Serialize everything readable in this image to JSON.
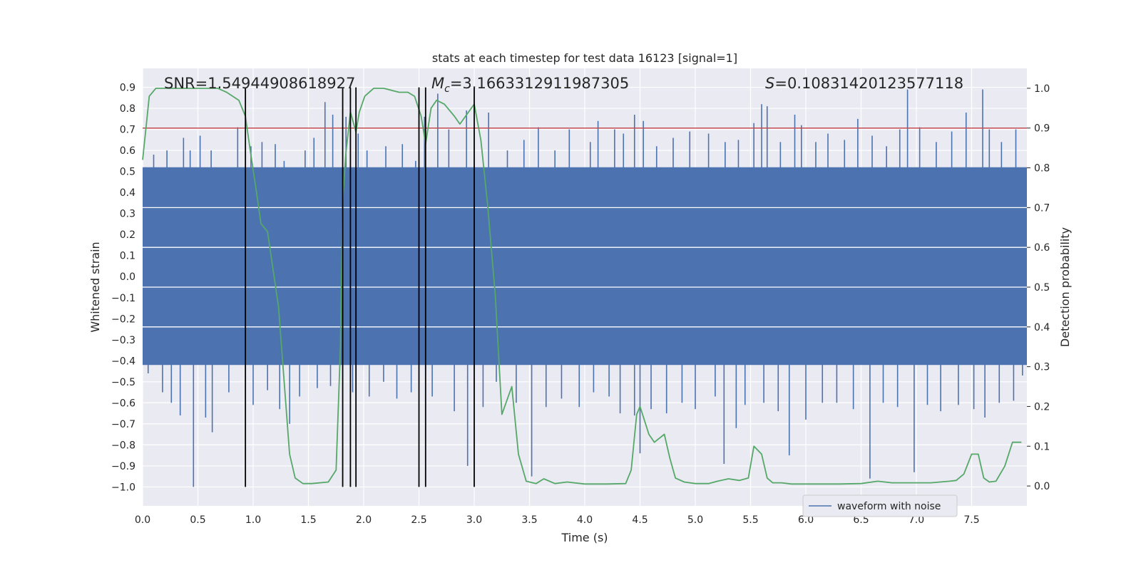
{
  "chart_data": {
    "type": "line",
    "title": "stats at each timestep for test data 16123 [signal=1]",
    "xlabel": "Time (s)",
    "ylabel": "Whitened strain",
    "y2label": "Detection probability",
    "xlim": [
      0.0,
      8.0
    ],
    "ylim": [
      -1.09,
      0.99
    ],
    "y2lim": [
      -0.05,
      1.05
    ],
    "x_ticks": [
      0.0,
      0.5,
      1.0,
      1.5,
      2.0,
      2.5,
      3.0,
      3.5,
      4.0,
      4.5,
      5.0,
      5.5,
      6.0,
      6.5,
      7.0,
      7.5
    ],
    "y_ticks": [
      -1.0,
      -0.9,
      -0.8,
      -0.7,
      -0.6,
      -0.5,
      -0.4,
      -0.3,
      -0.2,
      -0.1,
      0.0,
      0.1,
      0.2,
      0.3,
      0.4,
      0.5,
      0.6,
      0.7,
      0.8,
      0.9
    ],
    "y2_ticks": [
      0.0,
      0.1,
      0.2,
      0.3,
      0.4,
      0.5,
      0.6,
      0.7,
      0.8,
      0.9,
      1.0
    ],
    "annotations": {
      "snr": "SNR=1.54944908618927",
      "mc_symbol": "M",
      "mc_sub": "c",
      "mc_value": "=3.1663312911987305",
      "s_symbol": "S",
      "s_value": "=0.10831420123577118"
    },
    "threshold": {
      "value": 0.9,
      "axis": "y2",
      "color": "#c44e52"
    },
    "vertical_markers": [
      0.93,
      1.81,
      1.88,
      1.93,
      2.5,
      2.56,
      3.0
    ],
    "vertical_marker_range": [
      -1.0,
      0.9
    ],
    "waveform": {
      "name": "waveform with noise",
      "color": "#4c72b0",
      "core_range": [
        -0.42,
        0.52
      ],
      "spikes_up": [
        [
          0.03,
          0.52
        ],
        [
          0.1,
          0.58
        ],
        [
          0.22,
          0.6
        ],
        [
          0.37,
          0.66
        ],
        [
          0.43,
          0.6
        ],
        [
          0.52,
          0.67
        ],
        [
          0.62,
          0.6
        ],
        [
          0.86,
          0.71
        ],
        [
          0.98,
          0.62
        ],
        [
          1.08,
          0.64
        ],
        [
          1.2,
          0.63
        ],
        [
          1.28,
          0.55
        ],
        [
          1.47,
          0.6
        ],
        [
          1.55,
          0.66
        ],
        [
          1.65,
          0.83
        ],
        [
          1.72,
          0.77
        ],
        [
          1.84,
          0.76
        ],
        [
          1.95,
          0.68
        ],
        [
          2.03,
          0.6
        ],
        [
          2.2,
          0.62
        ],
        [
          2.35,
          0.63
        ],
        [
          2.47,
          0.55
        ],
        [
          2.55,
          0.76
        ],
        [
          2.67,
          0.87
        ],
        [
          2.77,
          0.7
        ],
        [
          2.93,
          0.79
        ],
        [
          3.13,
          0.78
        ],
        [
          3.3,
          0.6
        ],
        [
          3.45,
          0.65
        ],
        [
          3.58,
          0.71
        ],
        [
          3.73,
          0.6
        ],
        [
          3.86,
          0.7
        ],
        [
          4.05,
          0.64
        ],
        [
          4.12,
          0.74
        ],
        [
          4.27,
          0.7
        ],
        [
          4.35,
          0.68
        ],
        [
          4.45,
          0.77
        ],
        [
          4.53,
          0.74
        ],
        [
          4.65,
          0.62
        ],
        [
          4.8,
          0.66
        ],
        [
          4.95,
          0.69
        ],
        [
          5.12,
          0.68
        ],
        [
          5.27,
          0.64
        ],
        [
          5.39,
          0.65
        ],
        [
          5.53,
          0.73
        ],
        [
          5.6,
          0.82
        ],
        [
          5.65,
          0.81
        ],
        [
          5.77,
          0.64
        ],
        [
          5.9,
          0.77
        ],
        [
          5.96,
          0.72
        ],
        [
          6.09,
          0.64
        ],
        [
          6.2,
          0.68
        ],
        [
          6.35,
          0.65
        ],
        [
          6.47,
          0.75
        ],
        [
          6.6,
          0.67
        ],
        [
          6.73,
          0.62
        ],
        [
          6.85,
          0.7
        ],
        [
          6.92,
          0.89
        ],
        [
          7.03,
          0.71
        ],
        [
          7.18,
          0.64
        ],
        [
          7.32,
          0.69
        ],
        [
          7.45,
          0.78
        ],
        [
          7.6,
          0.89
        ],
        [
          7.66,
          0.7
        ],
        [
          7.77,
          0.64
        ],
        [
          7.9,
          0.7
        ]
      ],
      "spikes_down": [
        [
          0.05,
          -0.46
        ],
        [
          0.18,
          -0.55
        ],
        [
          0.26,
          -0.6
        ],
        [
          0.34,
          -0.66
        ],
        [
          0.46,
          -1.0
        ],
        [
          0.57,
          -0.67
        ],
        [
          0.63,
          -0.74
        ],
        [
          0.78,
          -0.55
        ],
        [
          1.0,
          -0.61
        ],
        [
          1.13,
          -0.54
        ],
        [
          1.24,
          -0.63
        ],
        [
          1.33,
          -0.7
        ],
        [
          1.42,
          -0.57
        ],
        [
          1.58,
          -0.53
        ],
        [
          1.7,
          -0.52
        ],
        [
          1.9,
          -0.55
        ],
        [
          2.05,
          -0.57
        ],
        [
          2.18,
          -0.5
        ],
        [
          2.3,
          -0.58
        ],
        [
          2.43,
          -0.55
        ],
        [
          2.62,
          -0.57
        ],
        [
          2.82,
          -0.64
        ],
        [
          2.94,
          -0.9
        ],
        [
          3.08,
          -0.62
        ],
        [
          3.2,
          -0.5
        ],
        [
          3.38,
          -0.6
        ],
        [
          3.52,
          -0.95
        ],
        [
          3.65,
          -0.62
        ],
        [
          3.79,
          -0.58
        ],
        [
          3.95,
          -0.62
        ],
        [
          4.08,
          -0.55
        ],
        [
          4.22,
          -0.57
        ],
        [
          4.32,
          -0.65
        ],
        [
          4.45,
          -0.66
        ],
        [
          4.5,
          -0.84
        ],
        [
          4.6,
          -0.63
        ],
        [
          4.74,
          -0.65
        ],
        [
          4.88,
          -0.6
        ],
        [
          5.0,
          -0.63
        ],
        [
          5.18,
          -0.57
        ],
        [
          5.26,
          -0.89
        ],
        [
          5.37,
          -0.72
        ],
        [
          5.45,
          -0.61
        ],
        [
          5.62,
          -0.6
        ],
        [
          5.75,
          -0.64
        ],
        [
          5.85,
          -0.85
        ],
        [
          6.0,
          -0.68
        ],
        [
          6.15,
          -0.6
        ],
        [
          6.28,
          -0.6
        ],
        [
          6.43,
          -0.63
        ],
        [
          6.58,
          -0.96
        ],
        [
          6.7,
          -0.6
        ],
        [
          6.83,
          -0.62
        ],
        [
          6.98,
          -0.93
        ],
        [
          7.1,
          -0.61
        ],
        [
          7.22,
          -0.64
        ],
        [
          7.38,
          -0.61
        ],
        [
          7.52,
          -0.63
        ],
        [
          7.62,
          -0.67
        ],
        [
          7.75,
          -0.6
        ],
        [
          7.88,
          -0.59
        ],
        [
          7.96,
          -0.47
        ]
      ]
    },
    "probability": {
      "name": "detection probability",
      "color": "#55a868",
      "x": [
        0.0,
        0.03,
        0.06,
        0.12,
        0.3,
        0.5,
        0.68,
        0.76,
        0.87,
        0.93,
        0.97,
        1.03,
        1.07,
        1.13,
        1.23,
        1.33,
        1.38,
        1.45,
        1.53,
        1.68,
        1.75,
        1.79,
        1.81,
        1.84,
        1.88,
        1.91,
        1.93,
        1.96,
        2.01,
        2.09,
        2.18,
        2.32,
        2.4,
        2.46,
        2.52,
        2.56,
        2.61,
        2.66,
        2.73,
        2.82,
        2.87,
        3.0,
        3.06,
        3.12,
        3.19,
        3.25,
        3.34,
        3.4,
        3.47,
        3.56,
        3.63,
        3.73,
        3.84,
        4.0,
        4.2,
        4.37,
        4.42,
        4.47,
        4.5,
        4.58,
        4.63,
        4.72,
        4.77,
        4.82,
        4.9,
        5.0,
        5.12,
        5.2,
        5.3,
        5.4,
        5.48,
        5.53,
        5.6,
        5.65,
        5.7,
        5.78,
        5.87,
        5.97,
        6.1,
        6.3,
        6.5,
        6.65,
        6.78,
        6.9,
        7.0,
        7.13,
        7.3,
        7.36,
        7.43,
        7.5,
        7.56,
        7.61,
        7.66,
        7.72,
        7.8,
        7.87,
        7.95
      ],
      "y": [
        0.82,
        0.9,
        0.98,
        1.0,
        1.0,
        1.0,
        1.0,
        0.99,
        0.97,
        0.93,
        0.85,
        0.74,
        0.66,
        0.64,
        0.45,
        0.08,
        0.02,
        0.006,
        0.006,
        0.01,
        0.04,
        0.35,
        0.72,
        0.84,
        0.94,
        0.91,
        0.89,
        0.94,
        0.98,
        1.0,
        1.0,
        0.99,
        0.99,
        0.98,
        0.93,
        0.86,
        0.95,
        0.97,
        0.96,
        0.93,
        0.91,
        0.96,
        0.87,
        0.71,
        0.48,
        0.18,
        0.25,
        0.08,
        0.012,
        0.006,
        0.018,
        0.006,
        0.01,
        0.005,
        0.005,
        0.006,
        0.04,
        0.18,
        0.2,
        0.13,
        0.11,
        0.13,
        0.07,
        0.02,
        0.01,
        0.006,
        0.006,
        0.012,
        0.018,
        0.014,
        0.02,
        0.1,
        0.08,
        0.02,
        0.008,
        0.008,
        0.005,
        0.005,
        0.005,
        0.005,
        0.006,
        0.012,
        0.008,
        0.008,
        0.008,
        0.008,
        0.012,
        0.014,
        0.03,
        0.08,
        0.08,
        0.02,
        0.01,
        0.012,
        0.05,
        0.11,
        0.11
      ]
    },
    "legend": {
      "entries": [
        "waveform with noise"
      ],
      "location": "lower-right"
    }
  }
}
